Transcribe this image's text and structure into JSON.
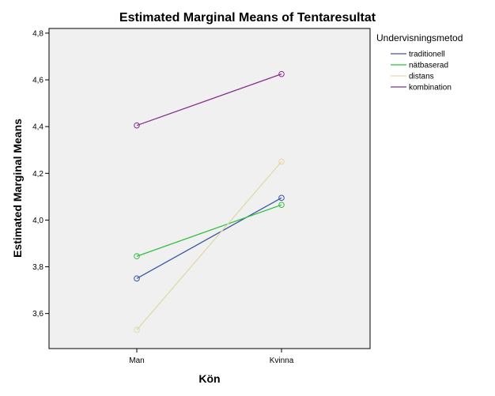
{
  "chart_data": {
    "type": "line",
    "title": "Estimated Marginal Means of Tentaresultat",
    "xlabel": "Kön",
    "ylabel": "Estimated Marginal Means",
    "categories": [
      "Man",
      "Kvinna"
    ],
    "ylim": [
      3.45,
      4.82
    ],
    "yticks": [
      "3,6",
      "3,8",
      "4,0",
      "4,2",
      "4,4",
      "4,6",
      "4,8"
    ],
    "ytick_values": [
      3.6,
      3.8,
      4.0,
      4.2,
      4.4,
      4.6,
      4.8
    ],
    "grid": false,
    "legend_title": "Undervisningsmetod",
    "legend_position": "right",
    "series": [
      {
        "name": "traditionell",
        "color": "#3f55a3",
        "values": [
          3.75,
          4.095
        ]
      },
      {
        "name": "nätbaserad",
        "color": "#2fbf3f",
        "values": [
          3.845,
          4.065
        ]
      },
      {
        "name": "distans",
        "color": "#e0d9a6",
        "values": [
          3.53,
          4.25
        ]
      },
      {
        "name": "kombination",
        "color": "#862d8a",
        "values": [
          4.405,
          4.625
        ]
      }
    ]
  }
}
